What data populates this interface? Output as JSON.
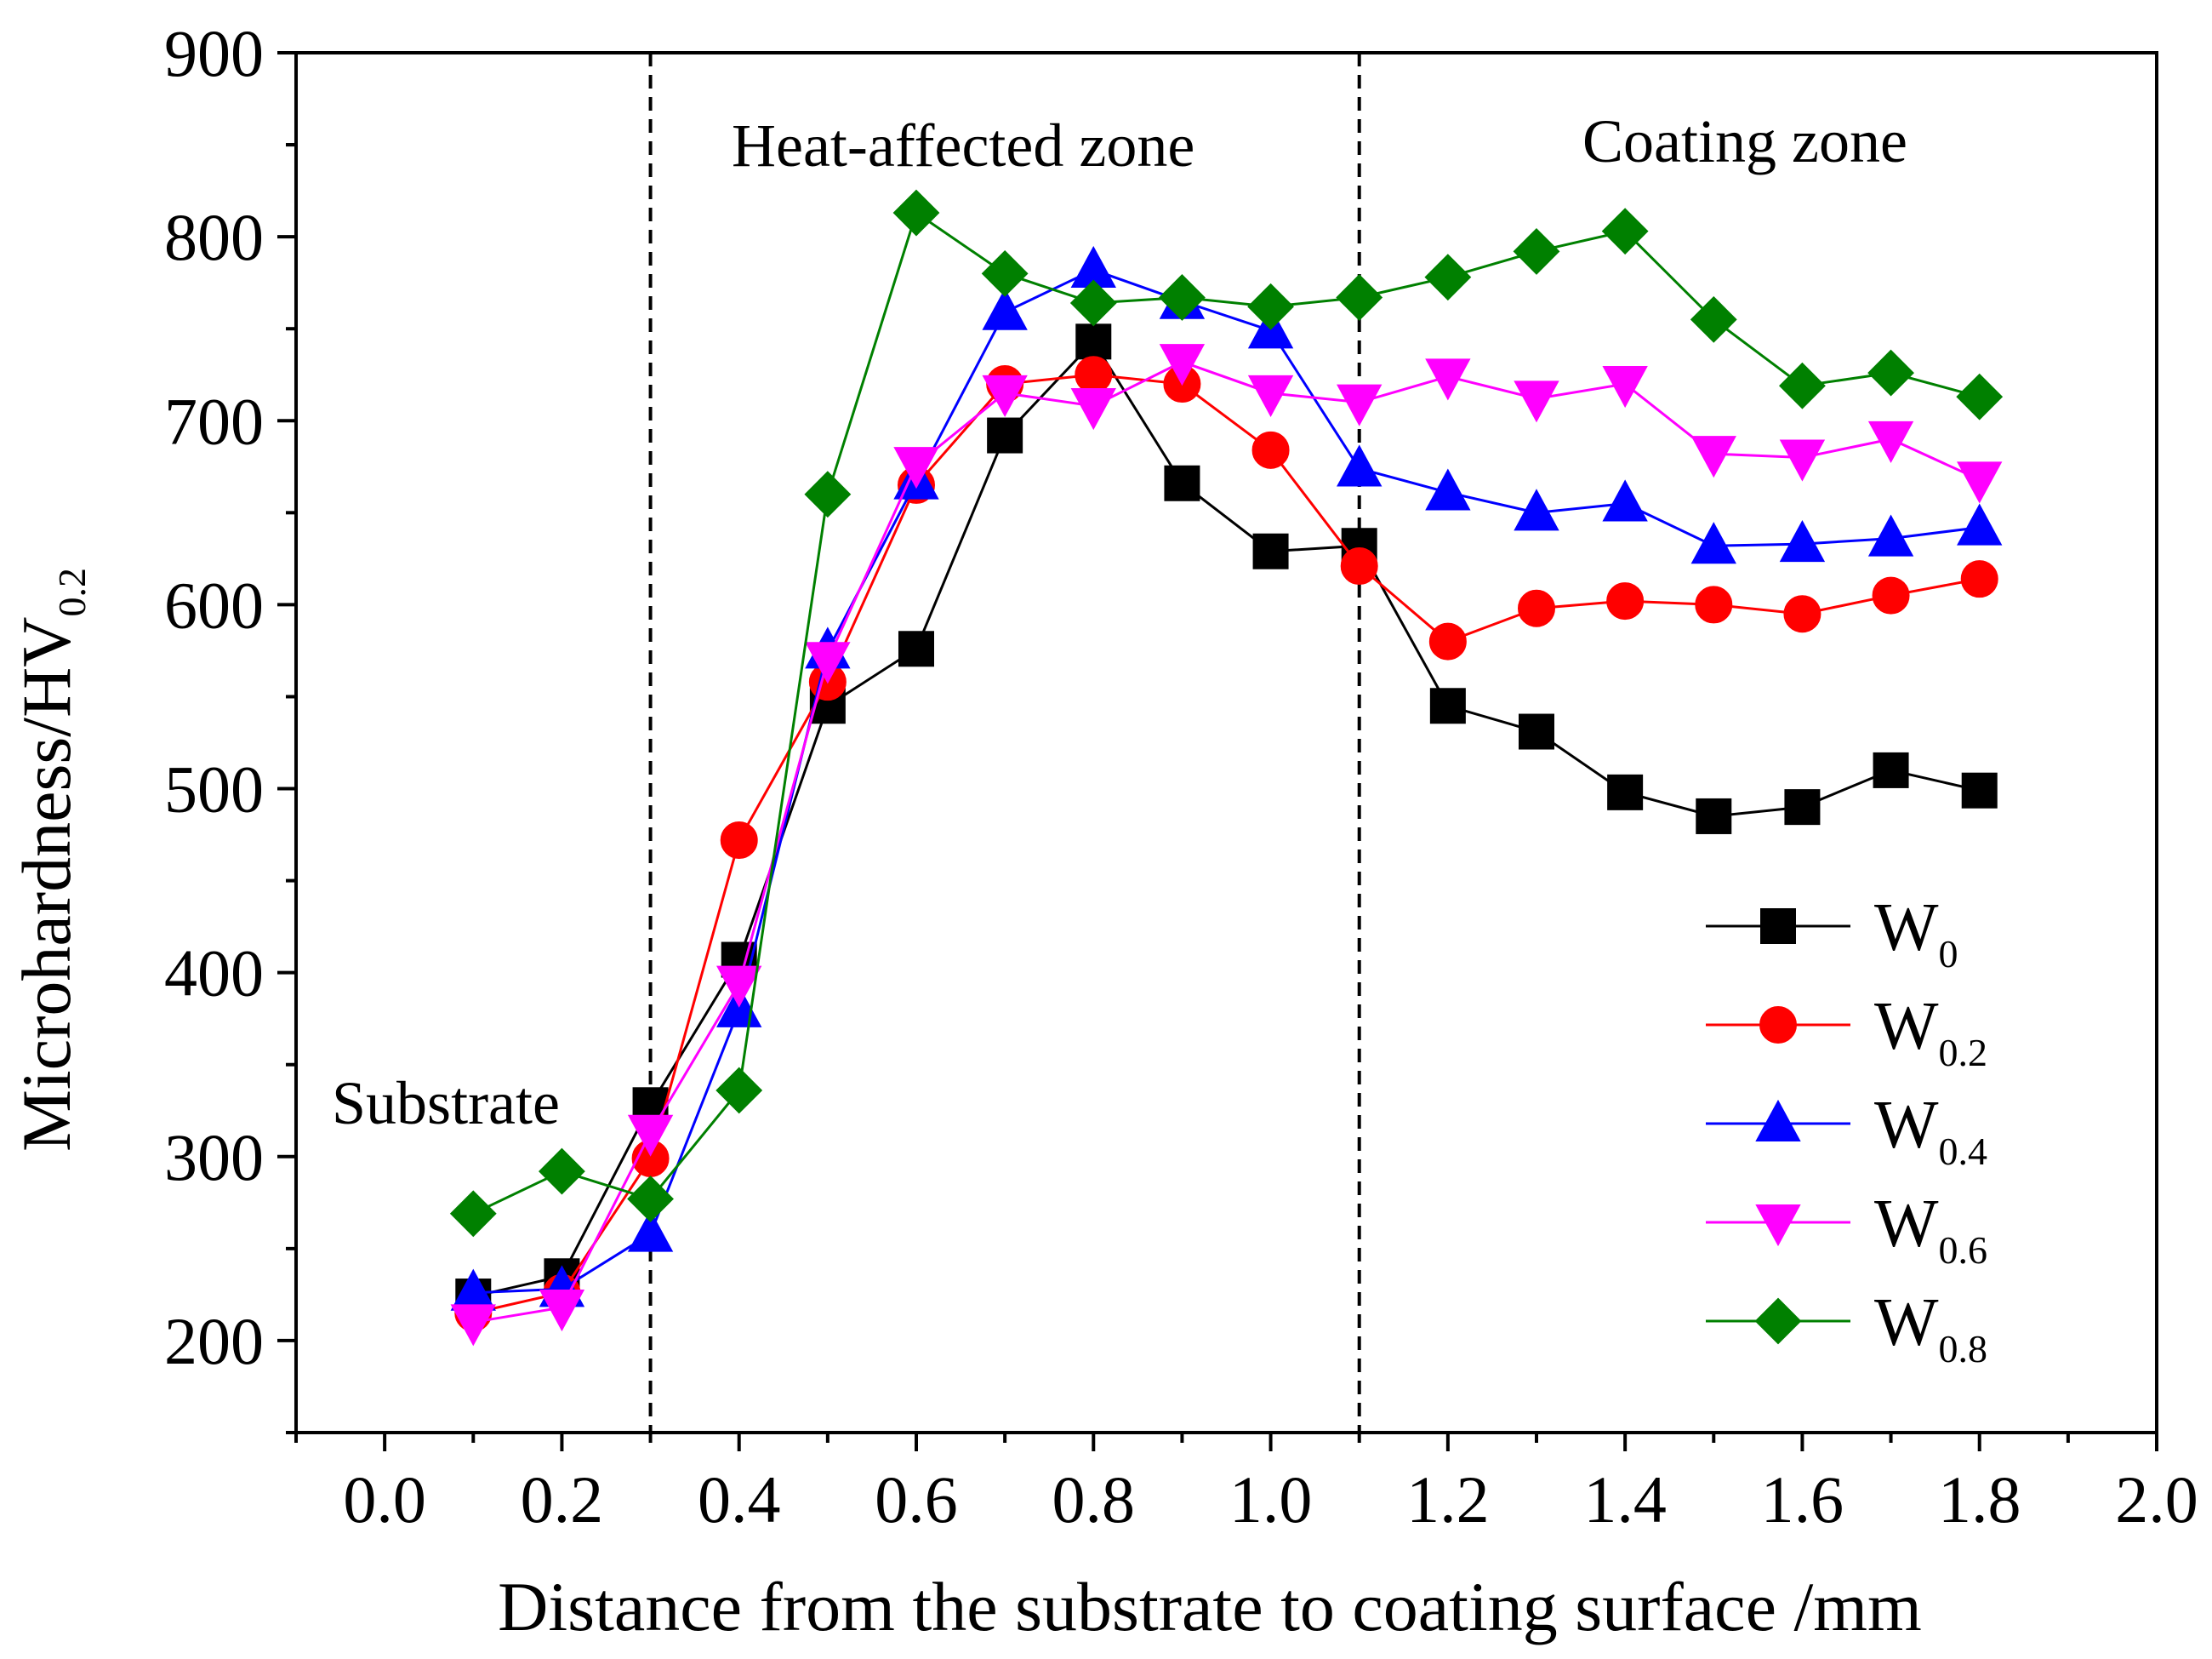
{
  "chart_data": {
    "type": "line",
    "title": "",
    "xlabel": "Distance from the substrate to coating surface /mm",
    "ylabel": {
      "main": "Microhardness/HV",
      "sub": "0.2"
    },
    "xlim": [
      -0.1,
      2.0
    ],
    "ylim": [
      150,
      900
    ],
    "xticks": [
      "0.0",
      "0.2",
      "0.4",
      "0.6",
      "0.8",
      "1.0",
      "1.2",
      "1.4",
      "1.6",
      "1.8",
      "2.0"
    ],
    "yticks": [
      "200",
      "300",
      "400",
      "500",
      "600",
      "700",
      "800",
      "900"
    ],
    "zone_boundaries": [
      0.3,
      1.1
    ],
    "annotations": [
      "Substrate",
      "Heat-affected zone",
      "Coating zone"
    ],
    "x": [
      0.1,
      0.2,
      0.3,
      0.4,
      0.5,
      0.6,
      0.7,
      0.8,
      0.9,
      1.0,
      1.1,
      1.2,
      1.3,
      1.4,
      1.5,
      1.6,
      1.7,
      1.8
    ],
    "series": [
      {
        "name": "W",
        "sub": "0",
        "color": "#000000",
        "marker": "square",
        "values": [
          224,
          235,
          328,
          407,
          545,
          576,
          692,
          743,
          666,
          629,
          632,
          545,
          531,
          498,
          485,
          490,
          510,
          499
        ]
      },
      {
        "name": "W",
        "sub": "0.2",
        "color": "#ff0000",
        "marker": "circle",
        "values": [
          215,
          226,
          299,
          472,
          558,
          665,
          720,
          725,
          720,
          684,
          621,
          580,
          598,
          602,
          600,
          595,
          605,
          614
        ]
      },
      {
        "name": "W",
        "sub": "0.4",
        "color": "#0000ff",
        "marker": "triangle-up",
        "values": [
          226,
          228,
          258,
          380,
          575,
          667,
          759,
          782,
          765,
          749,
          674,
          661,
          650,
          655,
          632,
          633,
          636,
          642
        ]
      },
      {
        "name": "W",
        "sub": "0.6",
        "color": "#ff00ff",
        "marker": "triangle-down",
        "values": [
          210,
          218,
          313,
          394,
          570,
          676,
          715,
          708,
          732,
          715,
          710,
          724,
          712,
          720,
          682,
          680,
          690,
          668
        ]
      },
      {
        "name": "W",
        "sub": "0.8",
        "color": "#008000",
        "marker": "diamond",
        "values": [
          269,
          292,
          277,
          336,
          660,
          813,
          780,
          764,
          767,
          762,
          767,
          778,
          792,
          803,
          755,
          719,
          726,
          713
        ]
      }
    ],
    "legend_position": "bottom-right",
    "grid": false
  }
}
